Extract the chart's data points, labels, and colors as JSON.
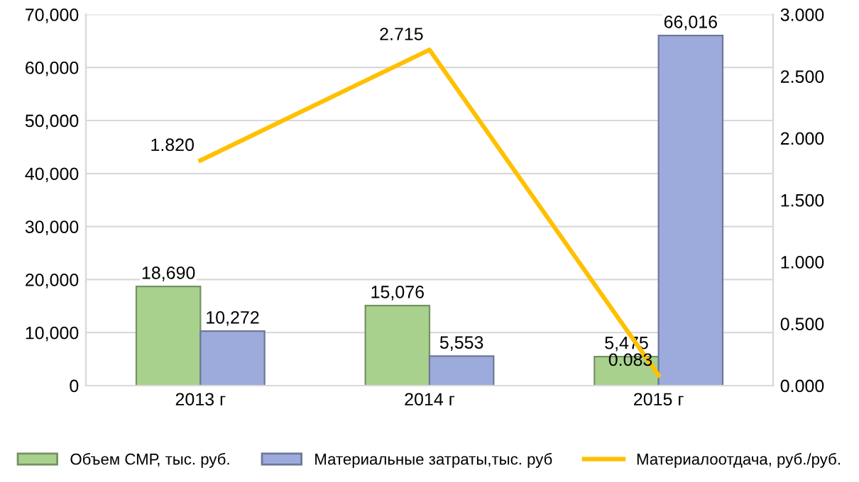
{
  "chart_data": {
    "type": "bar",
    "categories": [
      "2013 г",
      "2014 г",
      "2015 г"
    ],
    "series": [
      {
        "name": "Объем СМР, тыс. руб.",
        "color": "#a9d18e",
        "values": [
          18690,
          15076,
          5475
        ],
        "value_labels": [
          "18,690",
          "15,076",
          "5,475"
        ]
      },
      {
        "name": "Материальные затраты,тыс. руб",
        "color": "#9dabdc",
        "values": [
          10272,
          5553,
          66016
        ],
        "value_labels": [
          "10,272",
          "5,553",
          "66,016"
        ]
      },
      {
        "name": "Материалоотдача, руб./руб.",
        "type": "line",
        "axis": "y2",
        "color": "#ffc000",
        "values": [
          1.82,
          2.715,
          0.083
        ],
        "value_labels": [
          "1.820",
          "2.715",
          "0.083"
        ]
      }
    ],
    "ylim": [
      0,
      70000
    ],
    "yticks": [
      {
        "value": 0,
        "label": "0"
      },
      {
        "value": 10000,
        "label": "10,000"
      },
      {
        "value": 20000,
        "label": "20,000"
      },
      {
        "value": 30000,
        "label": "30,000"
      },
      {
        "value": 40000,
        "label": "40,000"
      },
      {
        "value": 50000,
        "label": "50,000"
      },
      {
        "value": 60000,
        "label": "60,000"
      },
      {
        "value": 70000,
        "label": "70,000"
      }
    ],
    "y2lim": [
      0,
      3
    ],
    "y2ticks": [
      {
        "value": 0,
        "label": "0.000"
      },
      {
        "value": 0.5,
        "label": "0.500"
      },
      {
        "value": 1,
        "label": "1.000"
      },
      {
        "value": 1.5,
        "label": "1.500"
      },
      {
        "value": 2,
        "label": "2.000"
      },
      {
        "value": 2.5,
        "label": "2.500"
      },
      {
        "value": 3,
        "label": "3.000"
      }
    ],
    "grid": "y",
    "legend": "bottom",
    "marker": "none"
  }
}
